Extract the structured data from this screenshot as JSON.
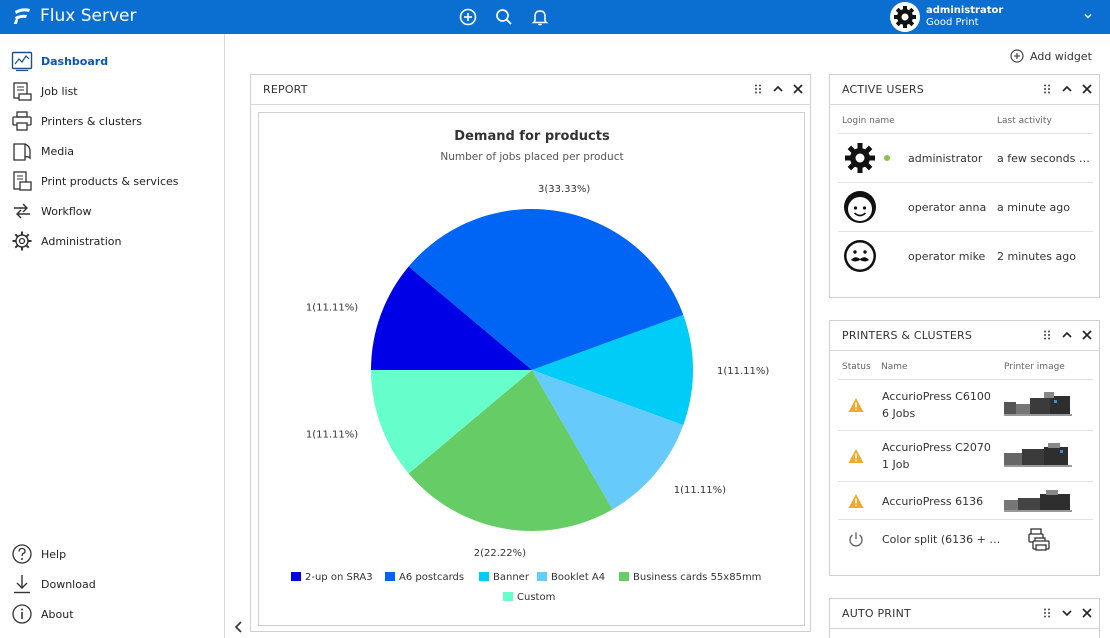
{
  "app": {
    "title": "Flux Server"
  },
  "user": {
    "name": "administrator",
    "org": "Good Print"
  },
  "sidebar": {
    "items": [
      {
        "label": "Dashboard"
      },
      {
        "label": "Job list"
      },
      {
        "label": "Printers & clusters"
      },
      {
        "label": "Media"
      },
      {
        "label": "Print products & services"
      },
      {
        "label": "Workflow"
      },
      {
        "label": "Administration"
      }
    ],
    "bottom": [
      {
        "label": "Help"
      },
      {
        "label": "Download"
      },
      {
        "label": "About"
      }
    ]
  },
  "toolbar": {
    "add_widget": "Add widget"
  },
  "report": {
    "title": "REPORT"
  },
  "chart_data": {
    "type": "pie",
    "title": "Demand for products",
    "subtitle": "Number of jobs placed per product",
    "categories": [
      "2-up on SRA3",
      "A6 postcards",
      "Banner",
      "Booklet A4",
      "Business cards 55x85mm",
      "Custom"
    ],
    "values": [
      1,
      3,
      1,
      1,
      2,
      1
    ],
    "labels": [
      "1(11.11%)",
      "3(33.33%)",
      "1(11.11%)",
      "1(11.11%)",
      "2(22.22%)",
      "1(11.11%)"
    ],
    "colors": [
      "#0000e6",
      "#0064f5",
      "#00ccf8",
      "#66cbfb",
      "#66cd66",
      "#66ffcc"
    ],
    "legend": "bottom"
  },
  "active_users": {
    "title": "ACTIVE USERS",
    "columns": [
      "Login name",
      "Last activity"
    ],
    "rows": [
      {
        "name": "administrator",
        "last": "a few seconds …",
        "avatar": "gear-avatar",
        "online": true
      },
      {
        "name": "operator anna",
        "last": "a minute ago",
        "avatar": "smile-avatar",
        "online": false
      },
      {
        "name": "operator mike",
        "last": "2 minutes ago",
        "avatar": "mustache-avatar",
        "online": false
      }
    ]
  },
  "printers": {
    "title": "PRINTERS & CLUSTERS",
    "columns": [
      "Status",
      "Name",
      "Printer image"
    ],
    "rows": [
      {
        "status": "warning",
        "name": "AccurioPress C6100",
        "jobs": "6 Jobs"
      },
      {
        "status": "warning",
        "name": "AccurioPress C2070",
        "jobs": "1 Job"
      },
      {
        "status": "warning",
        "name": "AccurioPress 6136",
        "jobs": ""
      },
      {
        "status": "power",
        "name": "Color split (6136 + …",
        "jobs": ""
      }
    ]
  },
  "autoprint": {
    "title": "AUTO PRINT"
  }
}
